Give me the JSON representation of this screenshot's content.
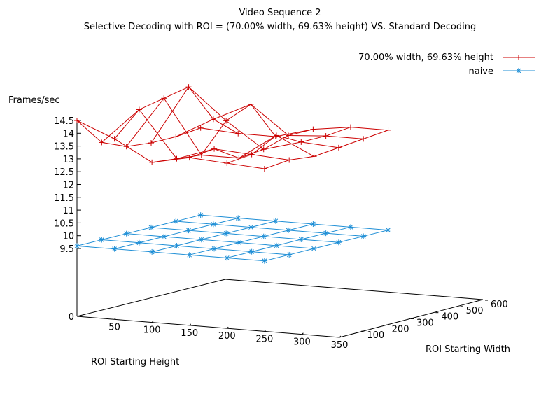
{
  "chart_data": {
    "type": "surface",
    "title": "Video Sequence 2",
    "subtitle": "Selective Decoding with ROI = (70.00% width, 69.63% height) VS. Standard Decoding",
    "zlabel": "Frames/sec",
    "xlabel": "ROI Starting Height",
    "ylabel": "ROI Starting Width",
    "x_ticks": [
      "50",
      "100",
      "150",
      "200",
      "250",
      "300",
      "350"
    ],
    "y_ticks": [
      "100",
      "200",
      "300",
      "400",
      "500",
      "600"
    ],
    "z_ticks": [
      "0",
      "9.5",
      "10",
      "10.5",
      "11",
      "11.5",
      "12",
      "12.5",
      "13",
      "13.5",
      "14",
      "14.5"
    ],
    "xlim": [
      0,
      350
    ],
    "ylim": [
      0,
      600
    ],
    "heights": [
      0,
      50,
      100,
      150,
      200,
      250
    ],
    "widths": [
      0,
      100,
      200,
      300,
      400,
      500
    ],
    "series": [
      {
        "name": "70.00% width, 69.63% height",
        "color": "#cc0000",
        "marker": "plus",
        "values": [
          [
            14.5,
            13.4,
            13.0,
            12.9,
            12.9,
            13.0
          ],
          [
            13.9,
            14.8,
            15.0,
            15.2,
            13.7,
            12.9
          ],
          [
            13.1,
            13.0,
            12.9,
            14.0,
            14.4,
            12.9
          ],
          [
            13.4,
            13.5,
            12.9,
            13.0,
            13.3,
            13.3
          ],
          [
            13.3,
            13.4,
            13.9,
            13.4,
            13.4,
            13.5
          ],
          [
            13.2,
            13.3,
            13.2,
            13.3,
            13.4,
            13.5
          ]
        ]
      },
      {
        "name": "naive",
        "color": "#1f8fd6",
        "marker": "star",
        "values": [
          [
            9.6,
            9.6,
            9.6,
            9.6,
            9.6,
            9.6
          ],
          [
            9.6,
            9.6,
            9.6,
            9.6,
            9.6,
            9.6
          ],
          [
            9.6,
            9.6,
            9.6,
            9.6,
            9.6,
            9.6
          ],
          [
            9.6,
            9.6,
            9.6,
            9.6,
            9.6,
            9.6
          ],
          [
            9.6,
            9.6,
            9.6,
            9.6,
            9.6,
            9.6
          ],
          [
            9.6,
            9.6,
            9.6,
            9.6,
            9.6,
            9.6
          ]
        ]
      }
    ]
  }
}
